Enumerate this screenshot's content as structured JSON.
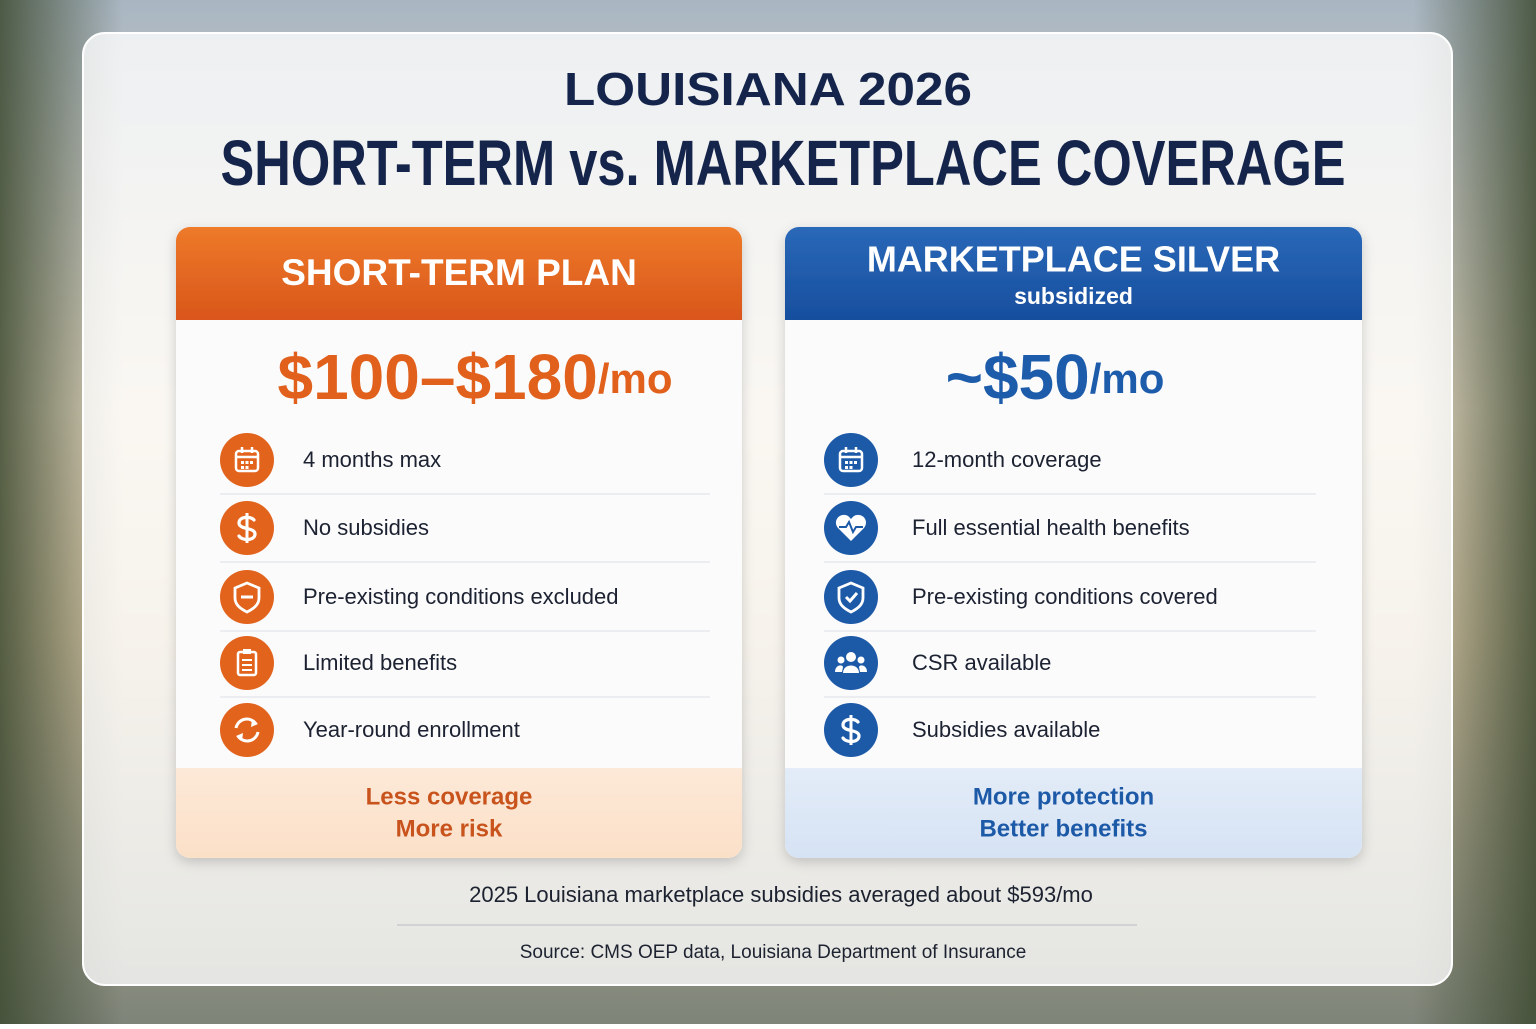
{
  "title": {
    "line1": "LOUISIANA 2026",
    "line2": "SHORT-TERM vs. MARKETPLACE COVERAGE"
  },
  "plans": [
    {
      "name": "SHORT-TERM PLAN",
      "price": "$100–$180",
      "unit": "/mo",
      "features": [
        "4 months max",
        "No subsidies",
        "Pre-existing conditions excluded",
        "Limited benefits",
        "Year-round enrollment"
      ],
      "footer": [
        "Less coverage",
        "More risk"
      ]
    },
    {
      "name": "MARKETPLACE SILVER",
      "subtitle": "subsidized",
      "price": "~$50",
      "unit": "/mo",
      "features": [
        "12-month coverage",
        "Full essential health benefits",
        "Pre-existing conditions covered",
        "CSR available",
        "Subsidies available"
      ],
      "footer": [
        "More protection",
        "Better benefits"
      ]
    }
  ],
  "note": "2025 Louisiana marketplace subsidies averaged about $593/mo",
  "source": "Source: CMS OEP data, Louisiana Department of Insurance"
}
